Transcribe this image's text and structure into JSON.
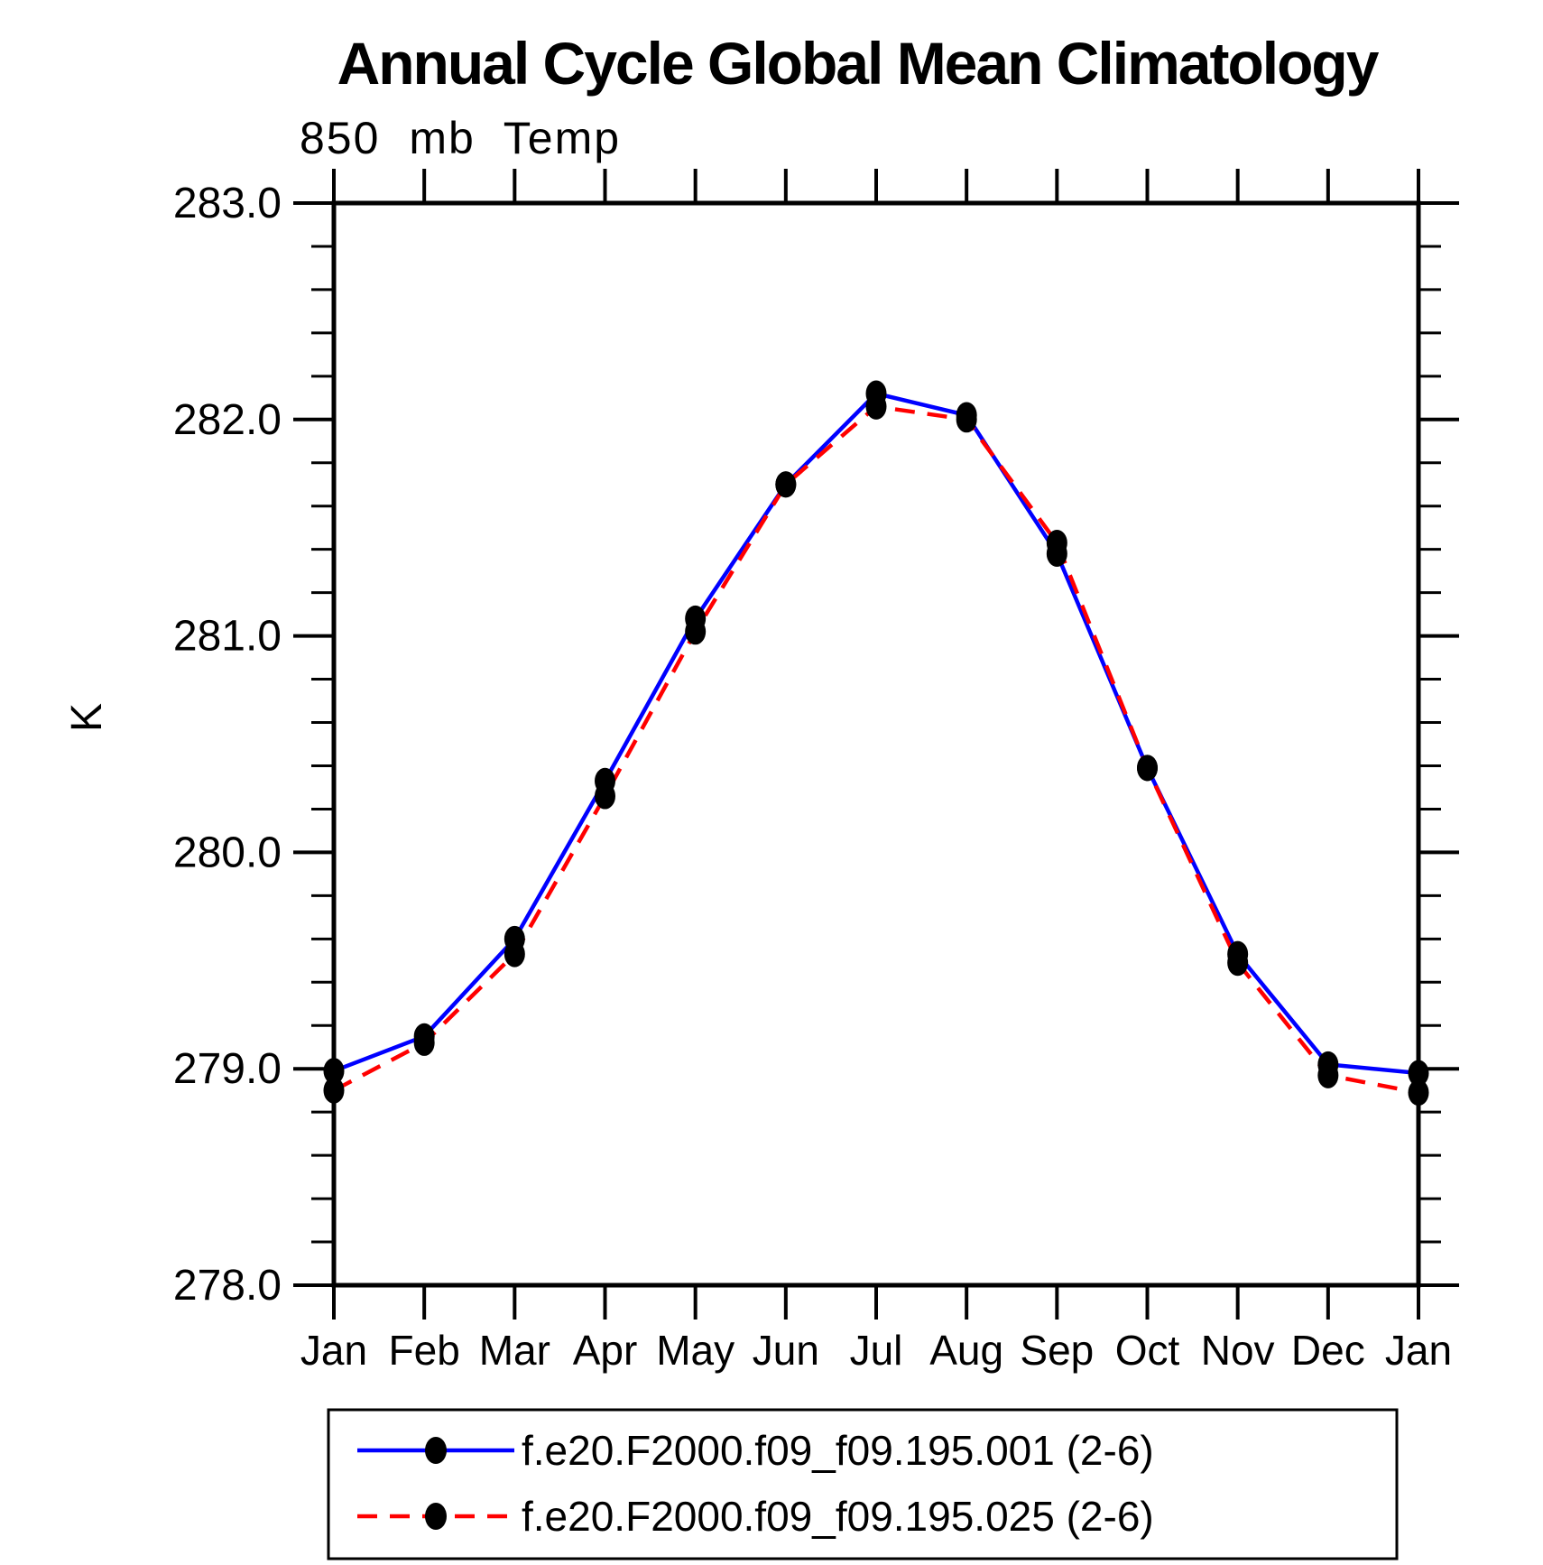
{
  "header": {
    "title": "Annual Cycle Global Mean Climatology",
    "subtitle": "850 mb Temp"
  },
  "chart_data": {
    "type": "line",
    "title": "Annual Cycle Global Mean Climatology",
    "subtitle": "850 mb Temp",
    "xlabel": "",
    "ylabel": "K",
    "categories": [
      "Jan",
      "Feb",
      "Mar",
      "Apr",
      "May",
      "Jun",
      "Jul",
      "Aug",
      "Sep",
      "Oct",
      "Nov",
      "Dec",
      "Jan"
    ],
    "ylim": [
      278.0,
      283.0
    ],
    "ytick_interval": 1.0,
    "yminor_interval": 0.2,
    "ytick_labels": [
      "278.0",
      "279.0",
      "280.0",
      "281.0",
      "282.0",
      "283.0"
    ],
    "grid": false,
    "legend_position": "bottom",
    "frame_color": "#000000",
    "marker": "filled-ellipse",
    "marker_color": "#000000",
    "series": [
      {
        "name": "f.e20.F2000.f09_f09.195.001 (2-6)",
        "color": "#0000ff",
        "style": "solid",
        "values": [
          278.99,
          279.15,
          279.6,
          280.33,
          281.08,
          281.7,
          282.12,
          282.02,
          281.38,
          280.39,
          279.53,
          279.02,
          278.98
        ]
      },
      {
        "name": "f.e20.F2000.f09_f09.195.025 (2-6)",
        "color": "#ff0000",
        "style": "dashed",
        "values": [
          278.9,
          279.12,
          279.53,
          280.26,
          281.02,
          281.7,
          282.06,
          282.0,
          281.43,
          280.39,
          279.49,
          278.97,
          278.89
        ]
      }
    ]
  }
}
